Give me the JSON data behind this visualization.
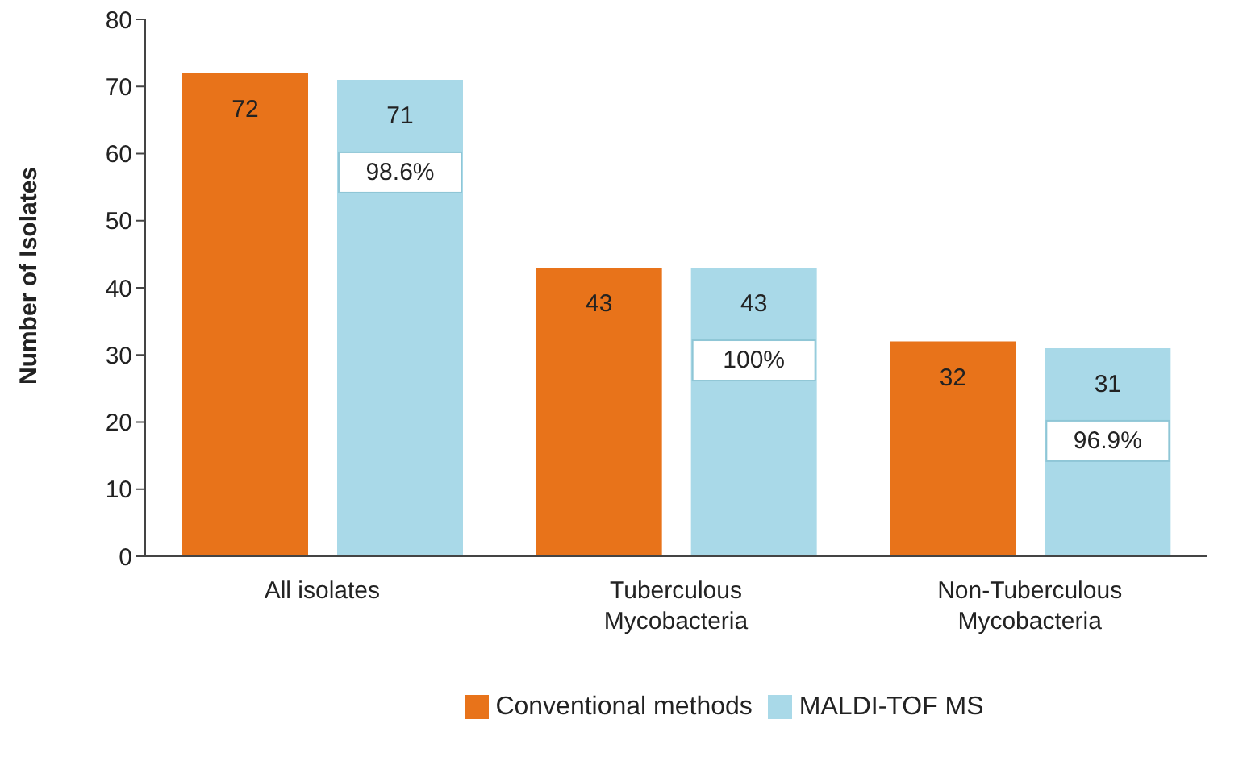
{
  "chart_data": {
    "type": "bar",
    "ylabel": "Number of Isolates",
    "categories": [
      "All isolates",
      "Tuberculous Mycobacteria",
      "Non-Tuberculous Mycobacteria"
    ],
    "series": [
      {
        "name": "Conventional methods",
        "color": "#e8731a",
        "values": [
          72,
          43,
          32
        ]
      },
      {
        "name": "MALDI-TOF MS",
        "color": "#a9d9e8",
        "values": [
          71,
          43,
          31
        ]
      }
    ],
    "ylim": [
      0,
      80
    ],
    "yticks": [
      0,
      10,
      20,
      30,
      40,
      50,
      60,
      70,
      80
    ],
    "grid": false,
    "legend": "bottom",
    "data_labels": true,
    "annotations": [
      "98.6%",
      "100%",
      "96.9%"
    ]
  }
}
